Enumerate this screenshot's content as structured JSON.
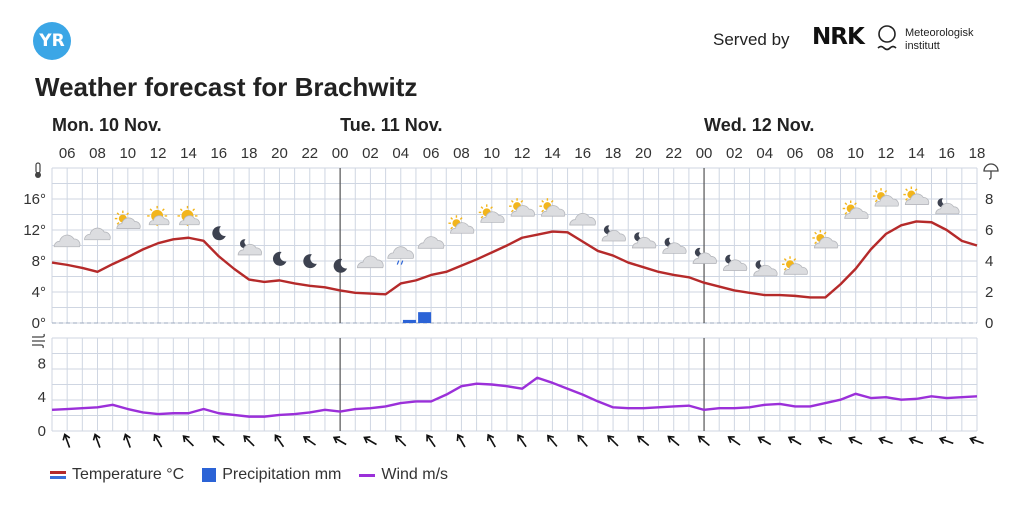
{
  "header": {
    "logo_text": "YR",
    "served_by": "Served by",
    "nrk_logo": "NRK",
    "met_line1": "Meteorologisk",
    "met_line2": "institutt",
    "title": "Weather forecast for Brachwitz"
  },
  "legend": {
    "temperature": "Temperature °C",
    "precipitation": "Precipitation mm",
    "wind": "Wind m/s"
  },
  "colors": {
    "temperature": "#b52a2a",
    "precipitation": "#2b63d6",
    "wind": "#9b30d9",
    "grid": "#cfd6e2",
    "day_divider": "#555555"
  },
  "chart_data": [
    {
      "type": "line",
      "title": "",
      "day_labels": [
        {
          "label": "Mon. 10 Nov.",
          "hour": 5
        },
        {
          "label": "Tue. 11 Nov.",
          "hour": 24
        },
        {
          "label": "Wed. 12 Nov.",
          "hour": 48
        }
      ],
      "hour_ticks": [
        "06",
        "08",
        "10",
        "12",
        "14",
        "16",
        "18",
        "20",
        "22",
        "00",
        "02",
        "04",
        "06",
        "08",
        "10",
        "12",
        "14",
        "16",
        "18",
        "20",
        "22",
        "00",
        "02",
        "04",
        "06",
        "08",
        "10",
        "12",
        "14",
        "16",
        "18"
      ],
      "x_range_hours": [
        5,
        66
      ],
      "day_boundaries_hours": [
        24,
        48
      ],
      "y_left": {
        "label": "°C",
        "icon": "thermometer-icon",
        "ticks": [
          0,
          4,
          8,
          12,
          16
        ],
        "tick_labels": [
          "0°",
          "4°",
          "8°",
          "12°",
          "16°"
        ],
        "range": [
          0,
          20
        ]
      },
      "y_right": {
        "label": "mm",
        "icon": "umbrella-icon",
        "ticks": [
          0,
          2,
          4,
          6,
          8
        ],
        "tick_labels": [
          "0",
          "2",
          "4",
          "6",
          "8"
        ],
        "range": [
          0,
          10
        ]
      },
      "series": [
        {
          "name": "Temperature °C",
          "axis": "left",
          "x": [
            5,
            6,
            7,
            8,
            9,
            10,
            11,
            12,
            13,
            14,
            15,
            16,
            17,
            18,
            19,
            20,
            21,
            22,
            23,
            24,
            25,
            26,
            27,
            28,
            29,
            30,
            31,
            32,
            33,
            34,
            35,
            36,
            37,
            38,
            39,
            40,
            41,
            42,
            43,
            44,
            45,
            46,
            47,
            48,
            49,
            50,
            51,
            52,
            53,
            54,
            55,
            56,
            57,
            58,
            59,
            60,
            61,
            62,
            63,
            64,
            65,
            66
          ],
          "values": [
            7.8,
            7.5,
            7.1,
            6.6,
            7.6,
            8.5,
            9.5,
            10.3,
            10.8,
            11.0,
            10.6,
            8.6,
            7.0,
            5.6,
            5.3,
            5.5,
            5.1,
            4.8,
            4.6,
            4.2,
            3.9,
            3.8,
            3.7,
            5.1,
            5.5,
            6.2,
            6.6,
            7.4,
            8.2,
            9.1,
            10.0,
            11.0,
            11.4,
            11.8,
            11.7,
            10.5,
            9.3,
            8.7,
            7.8,
            7.2,
            6.6,
            6.2,
            5.9,
            5.2,
            4.7,
            4.2,
            3.9,
            3.6,
            3.6,
            3.5,
            3.3,
            3.3,
            5.0,
            7.0,
            9.5,
            11.5,
            12.6,
            13.1,
            13.0,
            12.0,
            10.6,
            10.0
          ]
        },
        {
          "name": "Precipitation mm",
          "axis": "right",
          "type": "bar",
          "x": [
            29,
            30
          ],
          "values": [
            0.2,
            0.7
          ]
        }
      ]
    },
    {
      "type": "line",
      "title": "",
      "x_range_hours": [
        5,
        66
      ],
      "y": {
        "icon": "wind-icon",
        "ticks": [
          0,
          4,
          8
        ],
        "tick_labels": [
          "0",
          "4",
          "8"
        ],
        "range": [
          0,
          11
        ]
      },
      "series": [
        {
          "name": "Wind m/s",
          "x": [
            5,
            6,
            7,
            8,
            9,
            10,
            11,
            12,
            13,
            14,
            15,
            16,
            17,
            18,
            19,
            20,
            21,
            22,
            23,
            24,
            25,
            26,
            27,
            28,
            29,
            30,
            31,
            32,
            33,
            34,
            35,
            36,
            37,
            38,
            39,
            40,
            41,
            42,
            43,
            44,
            45,
            46,
            47,
            48,
            49,
            50,
            51,
            52,
            53,
            54,
            55,
            56,
            57,
            58,
            59,
            60,
            61,
            62,
            63,
            64,
            65,
            66
          ],
          "values": [
            2.5,
            2.6,
            2.7,
            2.8,
            3.1,
            2.6,
            2.2,
            2.0,
            2.1,
            2.1,
            2.6,
            2.1,
            1.9,
            1.7,
            1.7,
            1.9,
            2.0,
            2.2,
            2.5,
            2.3,
            2.6,
            2.7,
            2.9,
            3.3,
            3.5,
            3.5,
            4.3,
            5.3,
            5.6,
            5.5,
            5.3,
            5.0,
            6.3,
            5.7,
            5.0,
            4.3,
            3.5,
            2.8,
            2.7,
            2.7,
            2.8,
            2.9,
            3.0,
            2.5,
            2.7,
            2.7,
            2.8,
            3.1,
            3.2,
            2.9,
            2.9,
            3.3,
            3.7,
            4.4,
            3.9,
            4.0,
            3.7,
            3.8,
            4.1,
            3.9,
            4.0,
            4.1
          ]
        }
      ]
    }
  ],
  "weather_icons": [
    {
      "hour": 6,
      "temp": 10.2,
      "icon": "cloud-icon"
    },
    {
      "hour": 8,
      "temp": 11.1,
      "icon": "cloud-icon"
    },
    {
      "hour": 10,
      "temp": 12.7,
      "icon": "partly-cloudy-day-icon"
    },
    {
      "hour": 12,
      "temp": 13.3,
      "icon": "partly-sunny-icon"
    },
    {
      "hour": 14,
      "temp": 13.3,
      "icon": "partly-sunny-icon"
    },
    {
      "hour": 16,
      "temp": 11.3,
      "icon": "moon-icon"
    },
    {
      "hour": 18,
      "temp": 9.3,
      "icon": "partly-cloudy-night-icon"
    },
    {
      "hour": 20,
      "temp": 8.0,
      "icon": "moon-icon"
    },
    {
      "hour": 22,
      "temp": 7.7,
      "icon": "moon-icon"
    },
    {
      "hour": 24,
      "temp": 7.1,
      "icon": "moon-icon"
    },
    {
      "hour": 26,
      "temp": 7.5,
      "icon": "cloud-icon"
    },
    {
      "hour": 28,
      "temp": 8.7,
      "icon": "cloud-rain-icon"
    },
    {
      "hour": 30,
      "temp": 10.0,
      "icon": "cloud-icon"
    },
    {
      "hour": 32,
      "temp": 12.1,
      "icon": "partly-cloudy-day-icon"
    },
    {
      "hour": 34,
      "temp": 13.5,
      "icon": "partly-cloudy-day-icon"
    },
    {
      "hour": 36,
      "temp": 14.3,
      "icon": "partly-cloudy-day-icon"
    },
    {
      "hour": 38,
      "temp": 14.3,
      "icon": "partly-cloudy-day-icon"
    },
    {
      "hour": 40,
      "temp": 13.0,
      "icon": "cloud-icon"
    },
    {
      "hour": 42,
      "temp": 11.1,
      "icon": "partly-cloudy-night-icon"
    },
    {
      "hour": 44,
      "temp": 10.2,
      "icon": "partly-cloudy-night-icon"
    },
    {
      "hour": 46,
      "temp": 9.5,
      "icon": "partly-cloudy-night-icon"
    },
    {
      "hour": 48,
      "temp": 8.2,
      "icon": "partly-cloudy-night-icon"
    },
    {
      "hour": 50,
      "temp": 7.3,
      "icon": "partly-cloudy-night-icon"
    },
    {
      "hour": 52,
      "temp": 6.6,
      "icon": "partly-cloudy-night-icon"
    },
    {
      "hour": 54,
      "temp": 6.8,
      "icon": "partly-cloudy-day-icon"
    },
    {
      "hour": 56,
      "temp": 10.2,
      "icon": "partly-cloudy-day-icon"
    },
    {
      "hour": 58,
      "temp": 14.0,
      "icon": "partly-cloudy-day-icon"
    },
    {
      "hour": 60,
      "temp": 15.6,
      "icon": "partly-cloudy-day-icon"
    },
    {
      "hour": 62,
      "temp": 15.8,
      "icon": "partly-cloudy-day-icon"
    },
    {
      "hour": 64,
      "temp": 14.6,
      "icon": "partly-cloudy-night-icon"
    }
  ],
  "wind_directions_deg": [
    70,
    70,
    70,
    60,
    45,
    40,
    45,
    55,
    35,
    30,
    30,
    45,
    55,
    60,
    60,
    55,
    50,
    50,
    45,
    40,
    40,
    40,
    35,
    30,
    30,
    25,
    25,
    20,
    20,
    20,
    20
  ]
}
